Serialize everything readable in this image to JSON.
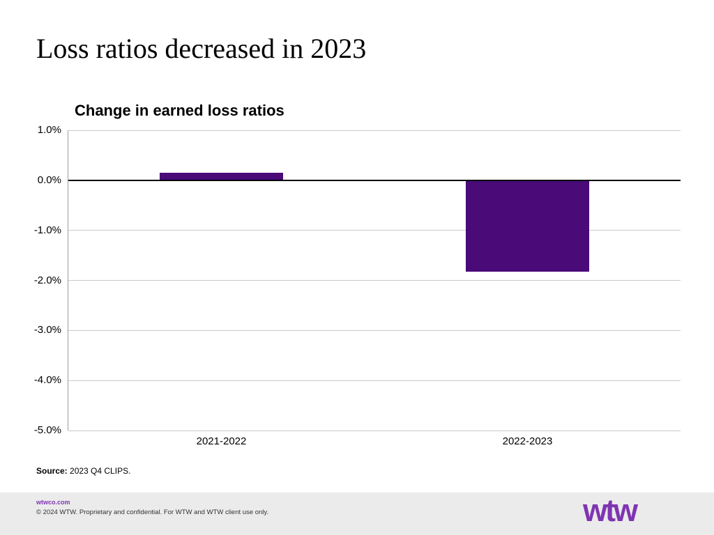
{
  "slide": {
    "title": "Loss ratios decreased in 2023"
  },
  "chart_data": {
    "type": "bar",
    "title": "Change in earned loss ratios",
    "categories": [
      "2021-2022",
      "2022-2023"
    ],
    "values": [
      0.15,
      -1.83
    ],
    "unit": "%",
    "xlabel": "",
    "ylabel": "",
    "ylim": [
      -5.0,
      1.0
    ],
    "ytick_step": 1.0,
    "ytick_labels": [
      "1.0%",
      "0.0%",
      "-1.0%",
      "-2.0%",
      "-3.0%",
      "-4.0%",
      "-5.0%"
    ],
    "grid": true,
    "legend": false,
    "bar_color": "#4a0a78",
    "zero_line_color": "#000000",
    "gridline_color": "#c9c9c9"
  },
  "source": {
    "label": "Source:",
    "text": " 2023 Q4 CLIPS."
  },
  "footer": {
    "website": "wtwco.com",
    "copyright": "© 2024 WTW. Proprietary and confidential. For WTW and WTW client use only.",
    "logo_text": "wtw",
    "logo_color": "#7f35b2",
    "background": "#ebebeb"
  }
}
